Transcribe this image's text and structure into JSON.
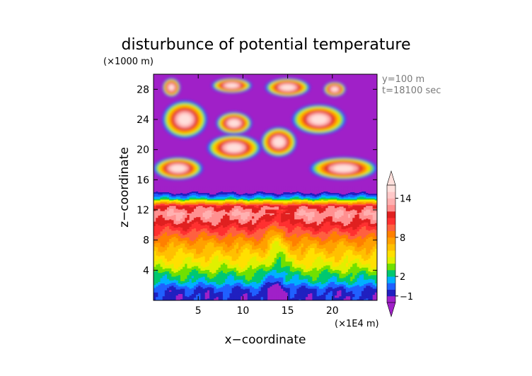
{
  "chart_data": {
    "type": "heatmap",
    "title": "disturbunce of potential temperature",
    "xlabel": "x−coordinate",
    "ylabel": "z−coordinate",
    "x_unit": "(×1E4 m)",
    "y_unit": "(×1000 m)",
    "annotations": [
      "y=100  m",
      "t=18100 sec"
    ],
    "xlim": [
      0,
      25
    ],
    "ylim": [
      0,
      30
    ],
    "x_ticks": [
      5,
      10,
      15,
      20
    ],
    "y_ticks": [
      4,
      8,
      12,
      16,
      20,
      24,
      28
    ],
    "colorbar": {
      "tick_values": [
        -1,
        2,
        8,
        14
      ],
      "tick_labels": [
        "−1",
        "2",
        "8",
        "14"
      ],
      "levels": [
        -2,
        -1,
        0,
        1,
        2,
        3,
        4,
        5,
        6,
        7,
        8,
        9,
        10,
        11,
        12,
        13,
        14,
        15,
        16
      ],
      "colors": [
        "#a020c8",
        "#2020c0",
        "#2060ff",
        "#00b0ff",
        "#00c870",
        "#70e000",
        "#e0f000",
        "#ffe000",
        "#ffc000",
        "#ffa000",
        "#ff8000",
        "#ff6040",
        "#ff3030",
        "#e02020",
        "#ff9090",
        "#ffb0b0",
        "#ffc8c8",
        "#ffe0dc"
      ],
      "extend": "both"
    },
    "profile": {
      "z": [
        0.5,
        1.5,
        2.5,
        3.5,
        4.5,
        5.5,
        6.5,
        7.5,
        8.5,
        9.5,
        10.5,
        11.5,
        12.5,
        13.5,
        14.5
      ],
      "value": [
        -0.5,
        0,
        2,
        3,
        4.5,
        5.5,
        6.5,
        7.5,
        9,
        10.5,
        12,
        13,
        11.5,
        2,
        -2
      ]
    },
    "upper_features": [
      {
        "x": [
          1,
          3
        ],
        "z": [
          27,
          29.5
        ]
      },
      {
        "x": [
          6.5,
          11
        ],
        "z": [
          27.5,
          29.5
        ]
      },
      {
        "x": [
          12.5,
          17.5
        ],
        "z": [
          27,
          29.5
        ]
      },
      {
        "x": [
          19,
          21.5
        ],
        "z": [
          27,
          29
        ]
      },
      {
        "x": [
          1,
          6
        ],
        "z": [
          21.5,
          26.5
        ]
      },
      {
        "x": [
          7,
          11
        ],
        "z": [
          22,
          25
        ]
      },
      {
        "x": [
          12,
          16
        ],
        "z": [
          19,
          23
        ]
      },
      {
        "x": [
          15.5,
          21.5
        ],
        "z": [
          22,
          26
        ]
      },
      {
        "x": [
          6,
          12
        ],
        "z": [
          18.5,
          22
        ]
      },
      {
        "x": [
          0,
          5.5
        ],
        "z": [
          16,
          19
        ]
      },
      {
        "x": [
          17.5,
          25
        ],
        "z": [
          16,
          19
        ]
      }
    ],
    "grid": false
  }
}
